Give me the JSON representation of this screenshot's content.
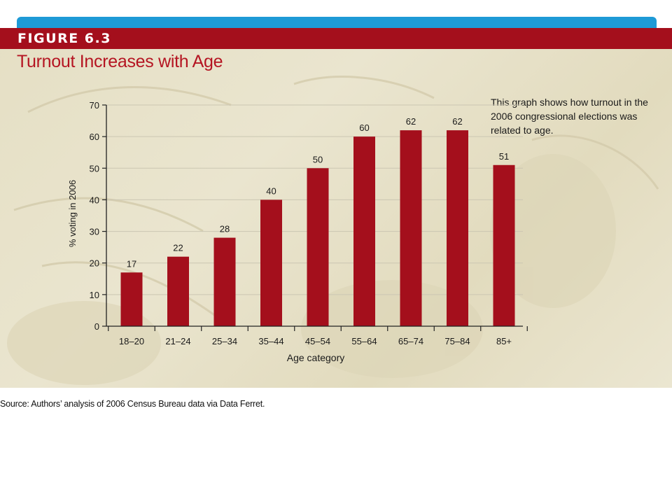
{
  "figure": {
    "label": "FIGURE 6.3",
    "note": "This graph shows how turnout in the 2006 congressional elections was related to age.",
    "source": "Source: Authors’ analysis of 2006 Census Bureau data via Data Ferret."
  },
  "colors": {
    "band": "#a40f1c",
    "bar": "#a40f1c",
    "top_strip": "#1e9ad6"
  },
  "chart_data": {
    "type": "bar",
    "title": "Turnout Increases with Age",
    "xlabel": "Age category",
    "ylabel": "% voting in 2006",
    "categories": [
      "18–20",
      "21–24",
      "25–34",
      "35–44",
      "45–54",
      "55–64",
      "65–74",
      "75–84",
      "85+"
    ],
    "values": [
      17,
      22,
      28,
      40,
      50,
      60,
      62,
      62,
      51
    ],
    "data_labels": [
      "17",
      "22",
      "28",
      "40",
      "50",
      "60",
      "62",
      "62",
      "51"
    ],
    "yticks": [
      "0",
      "10",
      "20",
      "30",
      "40",
      "50",
      "60",
      "70"
    ],
    "ylim": [
      0,
      70
    ],
    "grid": true,
    "legend": "none"
  }
}
